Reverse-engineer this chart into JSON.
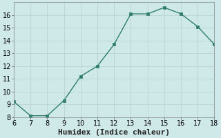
{
  "x": [
    6,
    7,
    8,
    9,
    10,
    11,
    12,
    13,
    14,
    15,
    16,
    17,
    18
  ],
  "y": [
    9.2,
    8.1,
    8.1,
    9.3,
    11.2,
    12.0,
    13.7,
    16.1,
    16.1,
    16.6,
    16.1,
    15.1,
    13.7
  ],
  "xlabel": "Humidex (Indice chaleur)",
  "xlim": [
    6,
    18
  ],
  "ylim": [
    8,
    17
  ],
  "yticks": [
    8,
    9,
    10,
    11,
    12,
    13,
    14,
    15,
    16
  ],
  "xticks": [
    6,
    7,
    8,
    9,
    10,
    11,
    12,
    13,
    14,
    15,
    16,
    17,
    18
  ],
  "line_color": "#2e7d6e",
  "marker_color": "#2e7d6e",
  "bg_color": "#cfe8e8",
  "grid_color": "#b8d4d4",
  "xlabel_fontsize": 8,
  "tick_fontsize": 7
}
